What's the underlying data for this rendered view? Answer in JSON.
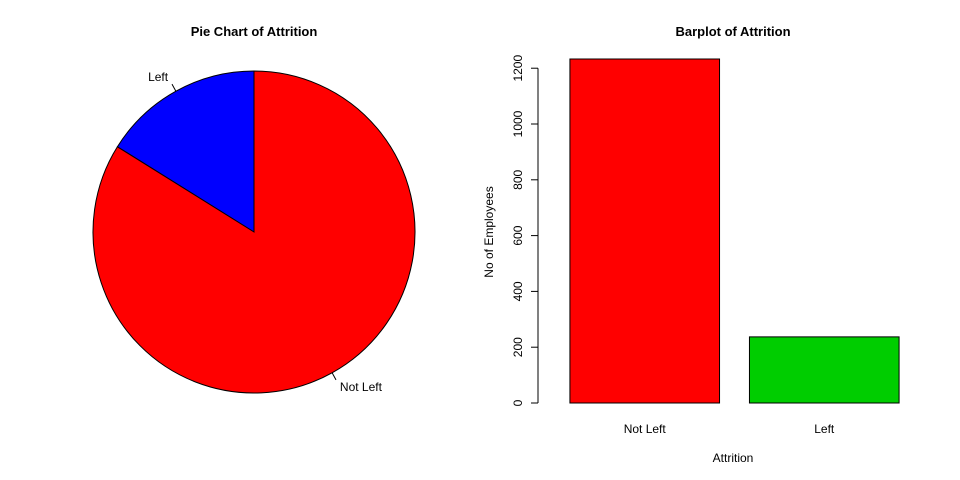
{
  "chart_data": [
    {
      "type": "pie",
      "title": "Pie Chart of Attrition",
      "labels": [
        "Left",
        "Not Left"
      ],
      "values": [
        237,
        1233
      ],
      "colors": [
        "#0000ff",
        "#ff0000"
      ],
      "start_angle_deg": 90,
      "direction": "counterclockwise"
    },
    {
      "type": "bar",
      "title": "Barplot of Attrition",
      "categories": [
        "Not Left",
        "Left"
      ],
      "values": [
        1233,
        237
      ],
      "colors": [
        "#ff0000",
        "#00cd00"
      ],
      "xlabel": "Attrition",
      "ylabel": "No of Employees",
      "ylim": [
        0,
        1233
      ],
      "yticks": [
        0,
        200,
        400,
        600,
        800,
        1000,
        1200
      ],
      "grid": false
    }
  ]
}
